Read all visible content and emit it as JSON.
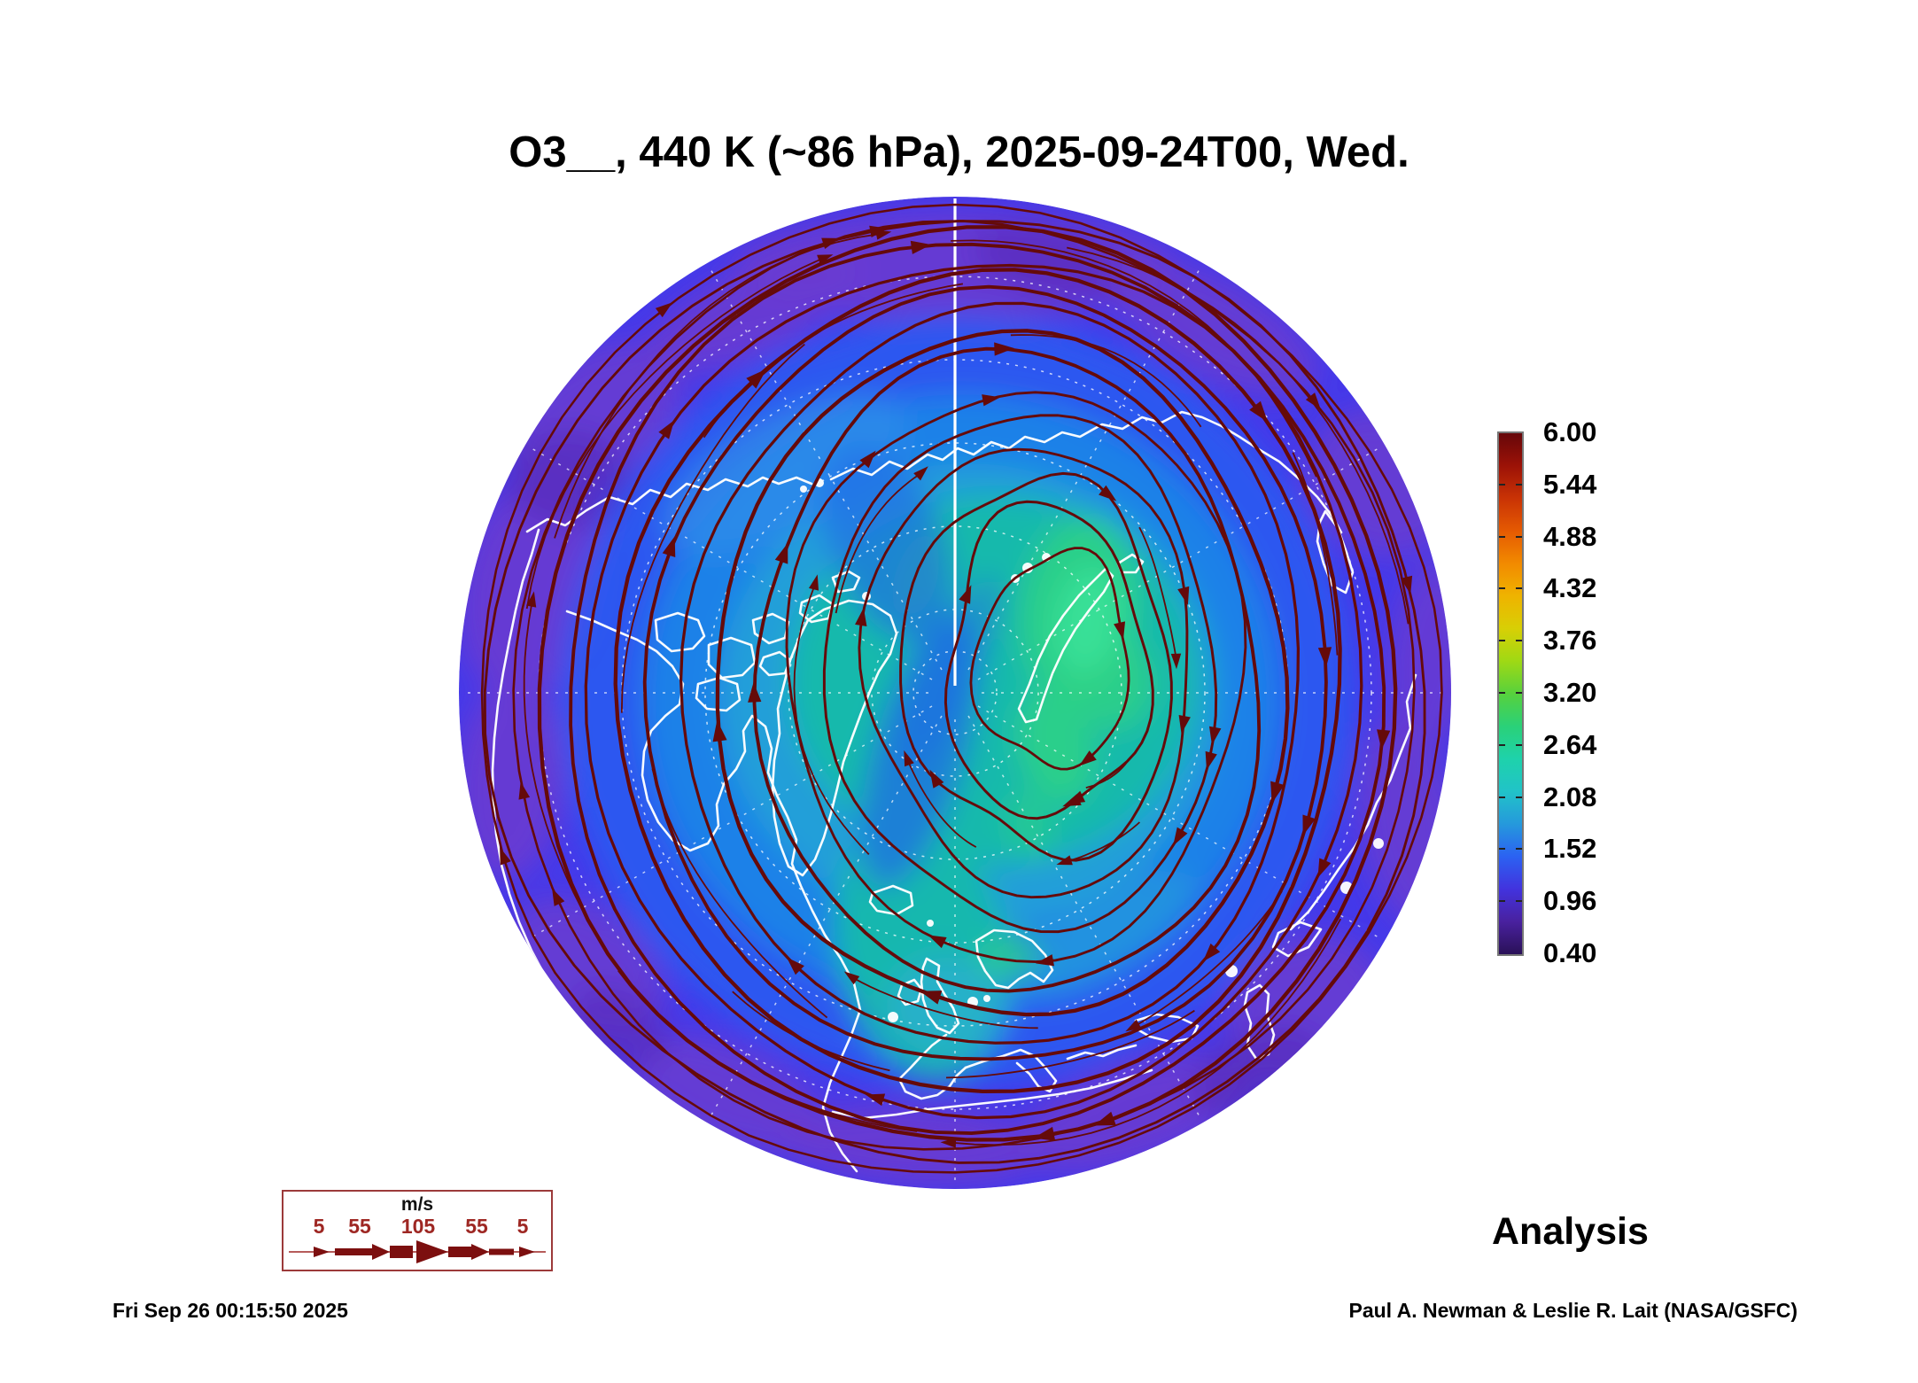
{
  "title": "O3__, 440 K (~86 hPa), 2025-09-24T00, Wed.",
  "analysis_label": "Analysis",
  "generated_timestamp": "Fri Sep 26 00:15:50 2025",
  "credit": "Paul A. Newman & Leslie R. Lait (NASA/GSFC)",
  "colorbar": {
    "labels": [
      "6.00",
      "5.44",
      "4.88",
      "4.32",
      "3.76",
      "3.20",
      "2.64",
      "2.08",
      "1.52",
      "0.96",
      "0.40"
    ],
    "gradient_top_to_bottom": [
      "#66070a",
      "#9c1207",
      "#c93305",
      "#e55a02",
      "#f28a00",
      "#efb300",
      "#d8cf05",
      "#9fd914",
      "#57d13d",
      "#2ad178",
      "#1ed2ab",
      "#21c3c8",
      "#2599dc",
      "#2b62f2",
      "#4233de",
      "#49219f",
      "#2a1157"
    ]
  },
  "wind_legend": {
    "units": "m/s",
    "speed_labels": [
      "5",
      "55",
      "105",
      "55",
      "5"
    ],
    "text_color": "#9e2723",
    "arrow_color": "#7c0f0f",
    "border_color": "#9c3a3a"
  },
  "chart_data": {
    "type": "heatmap",
    "title": "O3__, 440 K (~86 hPa), 2025-09-24T00, Wed.",
    "projection": "north-polar view, pole at center, 0E meridian at bottom, map edge near 30N",
    "quantity": "ozone mixing ratio shaded, with wind streamlines (line thickness = speed)",
    "valid_time": "2025-09-24T00",
    "weekday": "Wed",
    "product_label": "Analysis",
    "colorbar_range": [
      0.4,
      6.0
    ],
    "colorbar_levels": [
      0.4,
      0.96,
      1.52,
      2.08,
      2.64,
      3.2,
      3.76,
      4.32,
      4.88,
      5.44,
      6.0
    ],
    "wind_speed_scale_ms": [
      5,
      55,
      105,
      55,
      5
    ],
    "field_readings": [
      {
        "region": "polar core east of pole (Barents/Kara side)",
        "approx_value": 2.2,
        "shade": "teal"
      },
      {
        "region": "patches northeast of pole",
        "approx_value": 2.6,
        "shade": "green"
      },
      {
        "region": "ring through mid-latitudes",
        "approx_value": 1.5,
        "shade": "blue"
      },
      {
        "region": "outer rim near 30-40N",
        "approx_value": 1.0,
        "shade": "indigo/purple"
      }
    ],
    "flow_pattern": "closed circumpolar streamlines around the pole",
    "legend_position": "colorbar right side; wind-speed key bottom left",
    "grid": "dashed white graticule, solid white meridian from pole to top edge"
  },
  "map_colors": {
    "base": "#4439ea",
    "purple_patch": "#6a3cd0",
    "violet_deep": "#5226b4",
    "blue_ring": "#2b5af0",
    "azure": "#1f84e8",
    "sky": "#22a0d8",
    "teal": "#14b9ac",
    "teal_cyan": "#27b0cc",
    "green_patch": "#2ed285",
    "green_bright": "#3ce49b",
    "blue_swath": "#2168e8",
    "coast": "#ffffff",
    "graticule": "#ffffff",
    "streamline": "#650a0a"
  }
}
